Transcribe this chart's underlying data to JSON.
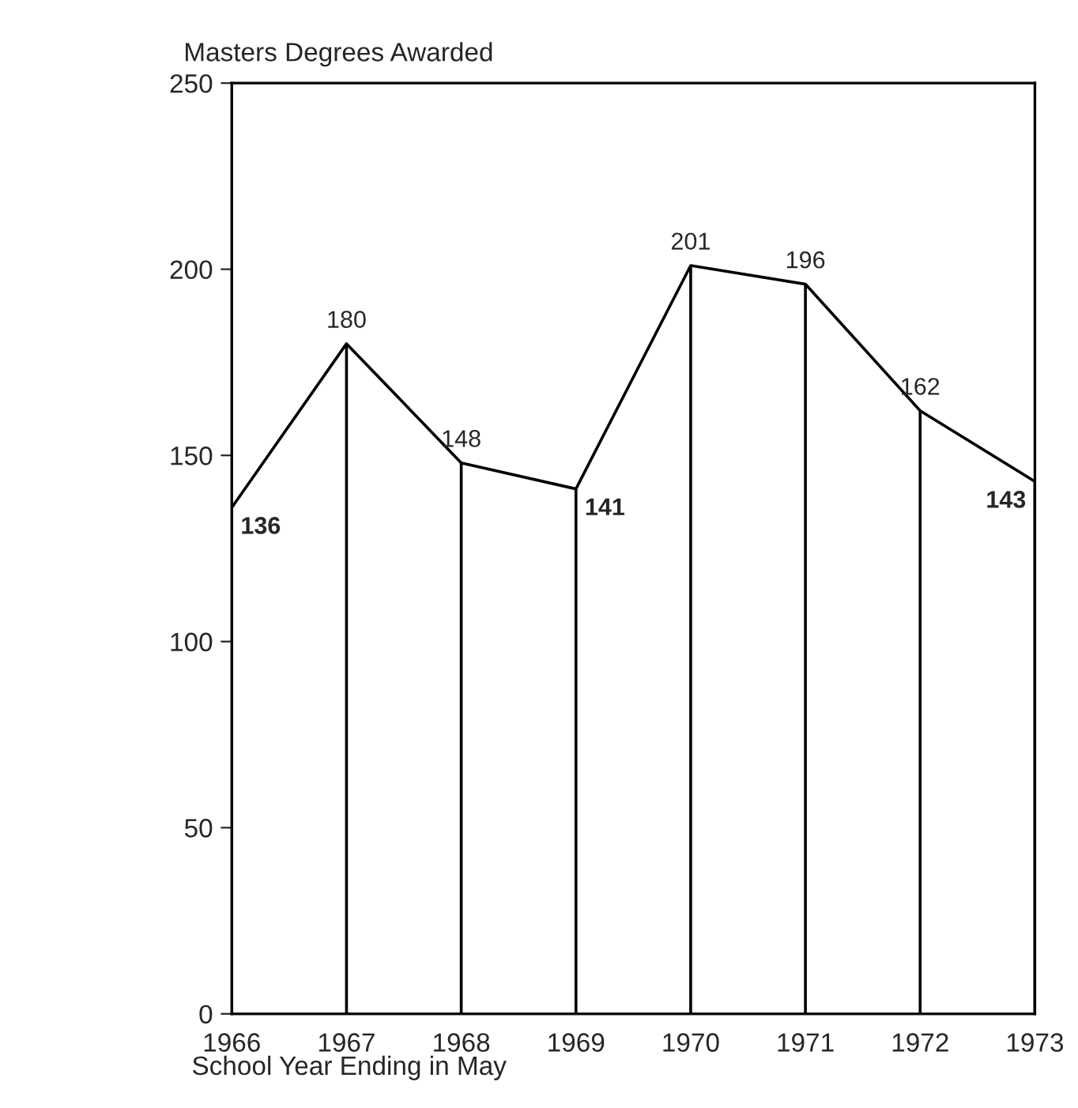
{
  "chart_data": {
    "type": "line",
    "title": "Masters Degrees Awarded",
    "xlabel": "School Year Ending in May",
    "x": [
      1966,
      1967,
      1968,
      1969,
      1970,
      1971,
      1972,
      1973
    ],
    "series": [
      {
        "color": "#000000",
        "values": [
          136,
          180,
          148,
          141,
          201,
          196,
          162,
          143
        ]
      }
    ],
    "xlim": [
      1966,
      1973
    ],
    "xticks": [
      1966,
      1967,
      1968,
      1969,
      1970,
      1971,
      1972,
      1973
    ],
    "ylim": [
      0,
      250
    ],
    "yticks": [
      0,
      50,
      100,
      150,
      200,
      250
    ],
    "data_labels": true,
    "grid": "x",
    "legend": false,
    "marker": "none",
    "line_style": "solid"
  }
}
